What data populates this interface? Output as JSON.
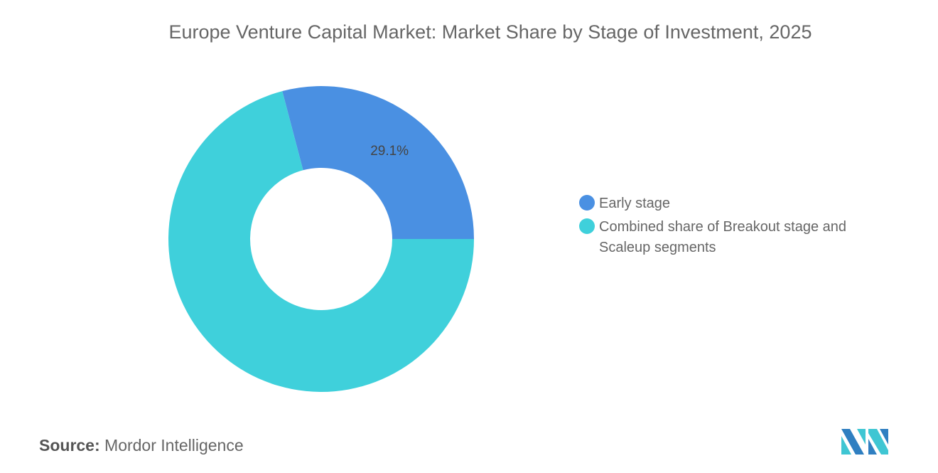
{
  "chart_data": {
    "type": "pie",
    "variant": "donut",
    "title": "Europe Venture Capital Market: Market Share by Stage of Investment, 2025",
    "categories": [
      "Early stage",
      "Combined share of Breakout stage and Scaleup segments"
    ],
    "values": [
      29.1,
      70.9
    ],
    "data_labels": [
      "29.1%",
      null
    ],
    "colors": [
      "#4a90e2",
      "#3fd0db"
    ],
    "legend_position": "right"
  },
  "source": {
    "label": "Source:",
    "value": "Mordor Intelligence"
  },
  "logo": {
    "text": "Mordor Intelligence",
    "colors": [
      "#2f7fc1",
      "#3fc6d3"
    ]
  }
}
